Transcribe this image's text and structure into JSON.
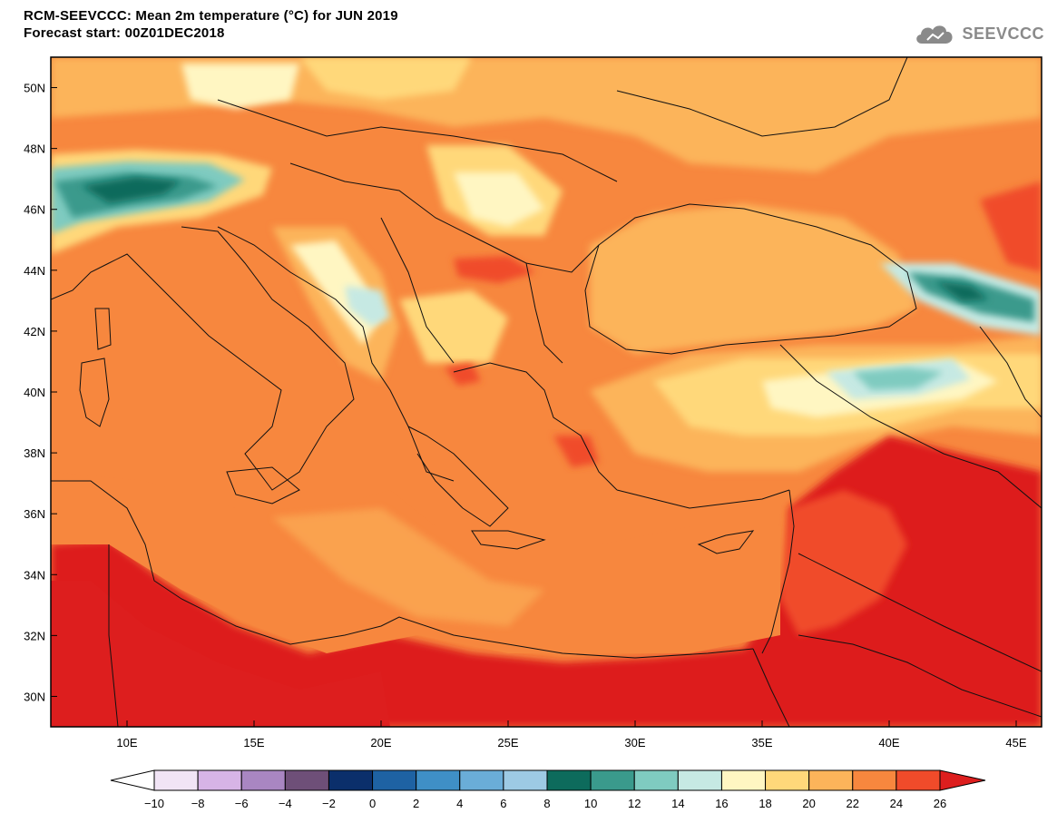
{
  "title": {
    "line1": "RCM-SEEVCCC: Mean 2m temperature (°C) for JUN 2019",
    "line2": "Forecast start: 00Z01DEC2018"
  },
  "logo": {
    "text": "SEEVCCC",
    "icon": "cloud-icon"
  },
  "map": {
    "lon_range": [
      7,
      46
    ],
    "lat_range": [
      29,
      51
    ],
    "lon_ticks": [
      {
        "value": 10,
        "label": "10E"
      },
      {
        "value": 15,
        "label": "15E"
      },
      {
        "value": 20,
        "label": "20E"
      },
      {
        "value": 25,
        "label": "25E"
      },
      {
        "value": 30,
        "label": "30E"
      },
      {
        "value": 35,
        "label": "35E"
      },
      {
        "value": 40,
        "label": "40E"
      },
      {
        "value": 45,
        "label": "45E"
      }
    ],
    "lat_ticks": [
      {
        "value": 30,
        "label": "30N"
      },
      {
        "value": 32,
        "label": "32N"
      },
      {
        "value": 34,
        "label": "34N"
      },
      {
        "value": 36,
        "label": "36N"
      },
      {
        "value": 38,
        "label": "38N"
      },
      {
        "value": 40,
        "label": "40N"
      },
      {
        "value": 42,
        "label": "42N"
      },
      {
        "value": 44,
        "label": "44N"
      },
      {
        "value": 46,
        "label": "46N"
      },
      {
        "value": 48,
        "label": "48N"
      },
      {
        "value": 50,
        "label": "50N"
      }
    ]
  },
  "colorbar": {
    "labels": [
      "-10",
      "-8",
      "-6",
      "-4",
      "-2",
      "0",
      "2",
      "4",
      "6",
      "8",
      "10",
      "12",
      "14",
      "16",
      "18",
      "20",
      "22",
      "24",
      "26"
    ],
    "low_arrow_color": "#ffffff",
    "high_arrow_color": "#dd1e1e",
    "colors": [
      "#f1e4f5",
      "#d7b4e6",
      "#a986c2",
      "#6e4f78",
      "#0b2f6b",
      "#1e62a3",
      "#3f8fc6",
      "#6aadd8",
      "#9dcae4",
      "#0d6b5c",
      "#3a9a8c",
      "#7fcbc0",
      "#c6e9e3",
      "#fff6c2",
      "#ffd87a",
      "#fcb45a",
      "#f7873e",
      "#f04b2a"
    ]
  }
}
